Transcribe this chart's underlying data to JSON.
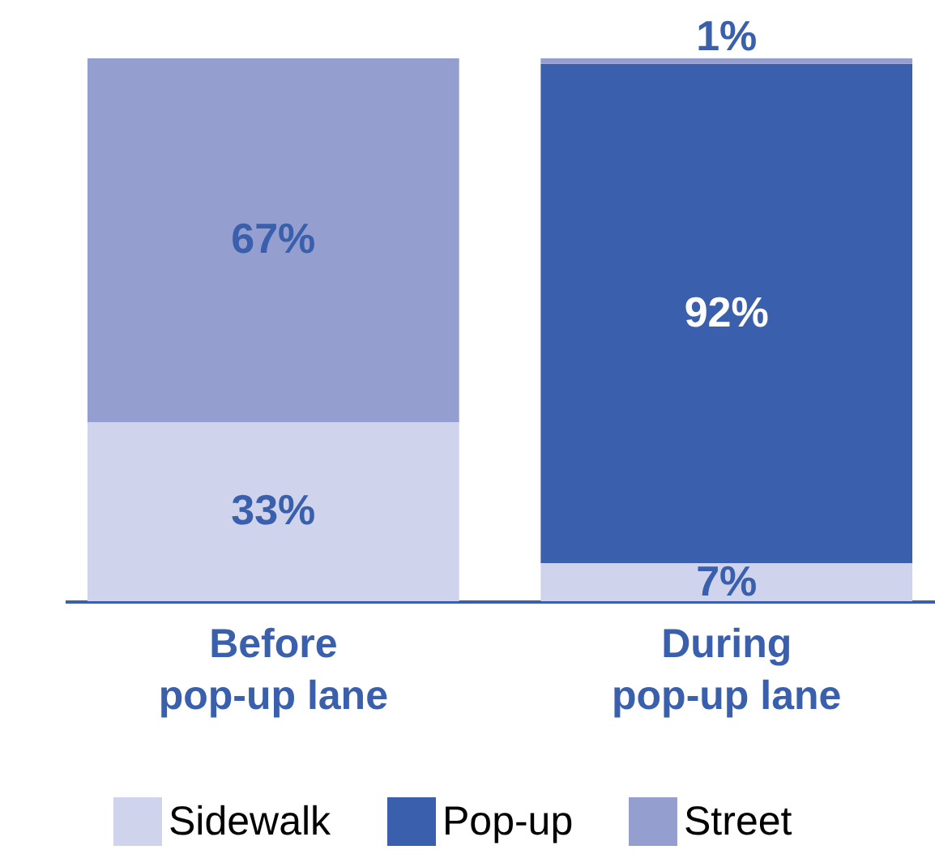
{
  "chart_data": {
    "type": "bar",
    "stacked": true,
    "categories": [
      "Before pop-up lane",
      "During pop-up lane"
    ],
    "series": [
      {
        "name": "Sidewalk",
        "color": "#cfd3eb",
        "values": [
          33,
          7
        ],
        "value_labels": [
          "33%",
          "7%"
        ]
      },
      {
        "name": "Pop-up",
        "color": "#3a60ad",
        "values": [
          0,
          92
        ],
        "value_labels": [
          null,
          "92%"
        ]
      },
      {
        "name": "Street",
        "color": "#949fcf",
        "values": [
          67,
          1
        ],
        "value_labels": [
          "67%",
          "1%"
        ]
      }
    ],
    "ylim": [
      0,
      100
    ],
    "legend": "bottom",
    "grid": false
  }
}
